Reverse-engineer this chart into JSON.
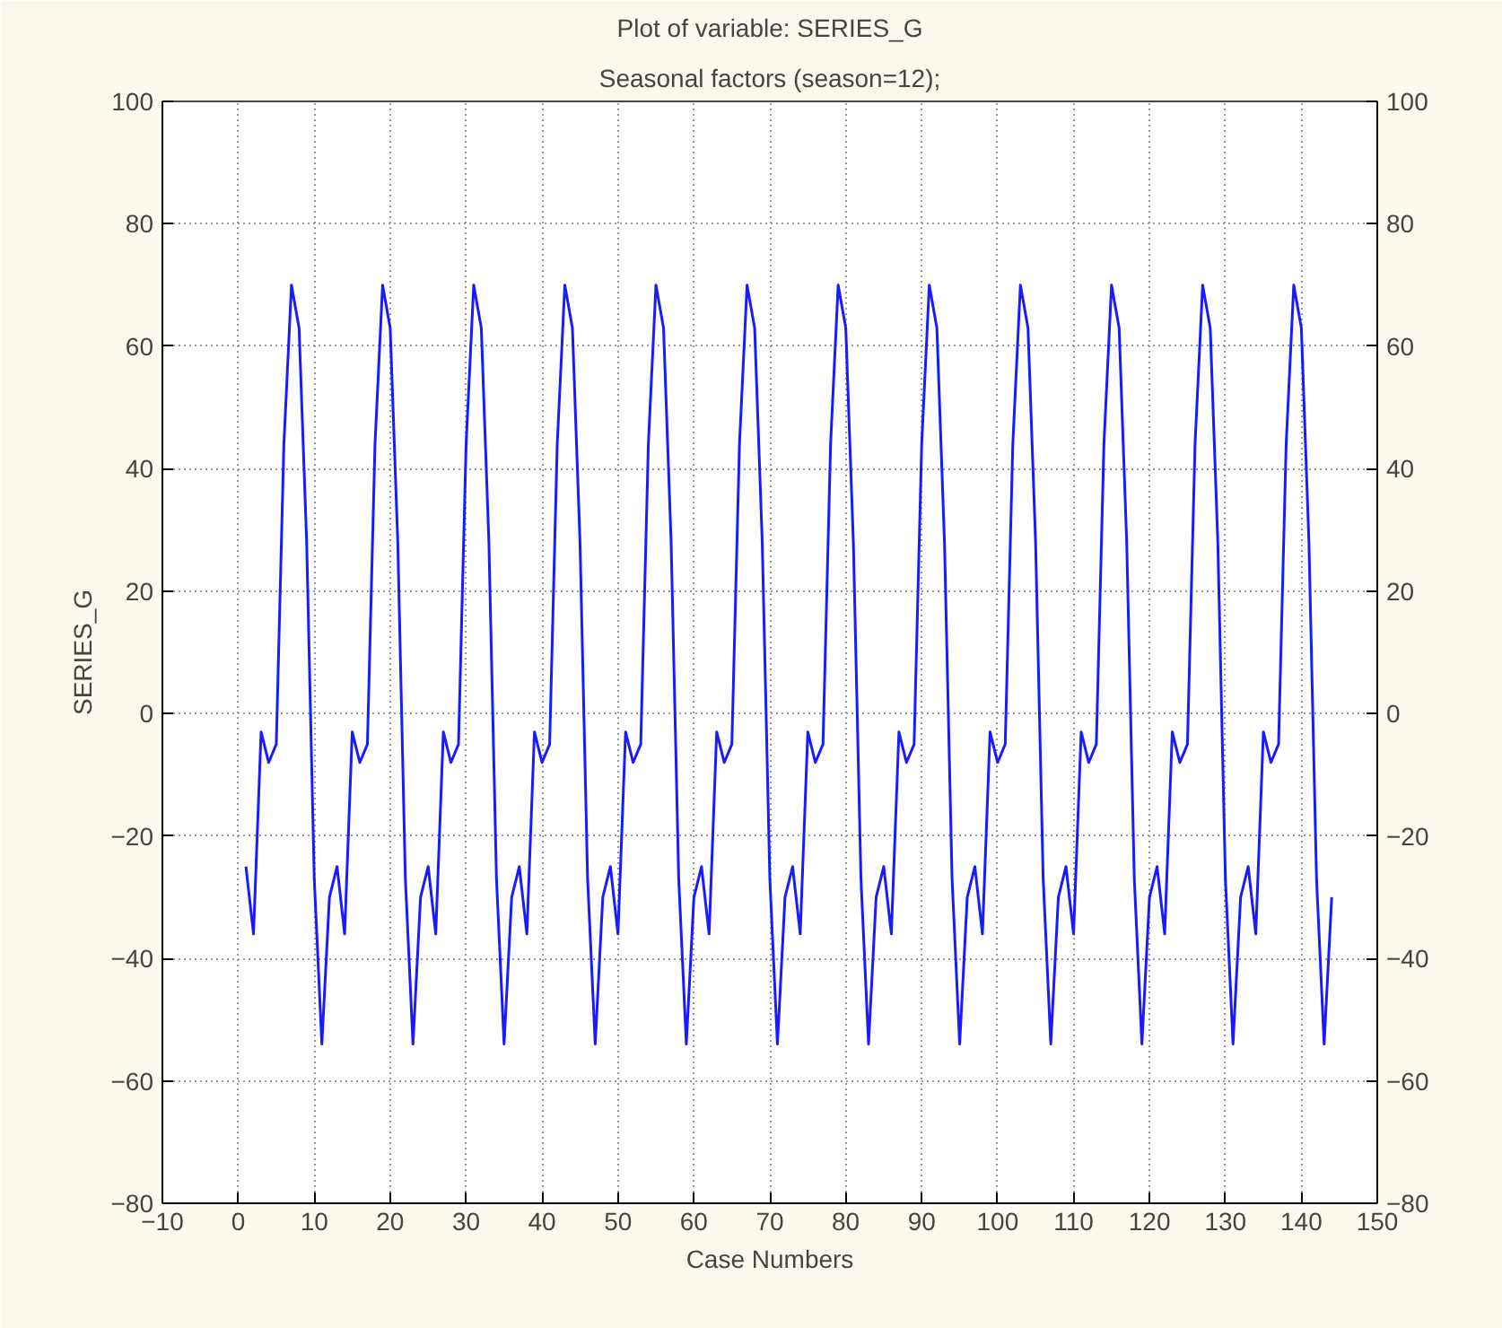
{
  "chart_data": {
    "type": "line",
    "title": "Plot of variable: SERIES_G",
    "subtitle": "Seasonal factors (season=12);",
    "xlabel": "Case Numbers",
    "ylabel": "SERIES_G",
    "x": [
      1,
      2,
      3,
      4,
      5,
      6,
      7,
      8,
      9,
      10,
      11,
      12,
      13,
      14,
      15,
      16,
      17,
      18,
      19,
      20,
      21,
      22,
      23,
      24,
      25,
      26,
      27,
      28,
      29,
      30,
      31,
      32,
      33,
      34,
      35,
      36,
      37,
      38,
      39,
      40,
      41,
      42,
      43,
      44,
      45,
      46,
      47,
      48,
      49,
      50,
      51,
      52,
      53,
      54,
      55,
      56,
      57,
      58,
      59,
      60,
      61,
      62,
      63,
      64,
      65,
      66,
      67,
      68,
      69,
      70,
      71,
      72,
      73,
      74,
      75,
      76,
      77,
      78,
      79,
      80,
      81,
      82,
      83,
      84,
      85,
      86,
      87,
      88,
      89,
      90,
      91,
      92,
      93,
      94,
      95,
      96,
      97,
      98,
      99,
      100,
      101,
      102,
      103,
      104,
      105,
      106,
      107,
      108,
      109,
      110,
      111,
      112,
      113,
      114,
      115,
      116,
      117,
      118,
      119,
      120,
      121,
      122,
      123,
      124,
      125,
      126,
      127,
      128,
      129,
      130,
      131,
      132,
      133,
      134,
      135,
      136,
      137,
      138,
      139,
      140,
      141,
      142,
      143,
      144
    ],
    "series": [
      {
        "color": "#1a1aff",
        "values": [
          -25,
          -36,
          -3,
          -8,
          -5,
          44,
          70,
          63,
          28,
          -27,
          -54,
          -30,
          -25,
          -36,
          -3,
          -8,
          -5,
          44,
          70,
          63,
          28,
          -27,
          -54,
          -30,
          -25,
          -36,
          -3,
          -8,
          -5,
          44,
          70,
          63,
          28,
          -27,
          -54,
          -30,
          -25,
          -36,
          -3,
          -8,
          -5,
          44,
          70,
          63,
          28,
          -27,
          -54,
          -30,
          -25,
          -36,
          -3,
          -8,
          -5,
          44,
          70,
          63,
          28,
          -27,
          -54,
          -30,
          -25,
          -36,
          -3,
          -8,
          -5,
          44,
          70,
          63,
          28,
          -27,
          -54,
          -30,
          -25,
          -36,
          -3,
          -8,
          -5,
          44,
          70,
          63,
          28,
          -27,
          -54,
          -30,
          -25,
          -36,
          -3,
          -8,
          -5,
          44,
          70,
          63,
          28,
          -27,
          -54,
          -30,
          -25,
          -36,
          -3,
          -8,
          -5,
          44,
          70,
          63,
          28,
          -27,
          -54,
          -30,
          -25,
          -36,
          -3,
          -8,
          -5,
          44,
          70,
          63,
          28,
          -27,
          -54,
          -30,
          -25,
          -36,
          -3,
          -8,
          -5,
          44,
          70,
          63,
          28,
          -27,
          -54,
          -30,
          -25,
          -36,
          -3,
          -8,
          -5,
          44,
          70,
          63,
          28,
          -27,
          -54,
          -30
        ]
      }
    ],
    "xlim": [
      -10,
      150
    ],
    "xticks": [
      -10,
      0,
      10,
      20,
      30,
      40,
      50,
      60,
      70,
      80,
      90,
      100,
      110,
      120,
      130,
      140,
      150
    ],
    "ylim": [
      -80,
      100
    ],
    "yticks": [
      -80,
      -60,
      -40,
      -20,
      0,
      20,
      40,
      60,
      80,
      100
    ],
    "y2lim": [
      -80,
      100
    ],
    "y2ticks": [
      -80,
      -60,
      -40,
      -20,
      0,
      20,
      40,
      60,
      80,
      100
    ],
    "grid": true,
    "marker": "none",
    "line_style": "solid"
  }
}
